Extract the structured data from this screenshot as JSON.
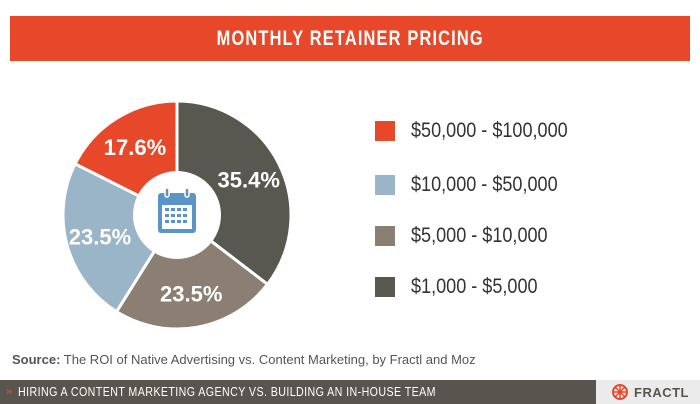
{
  "header": {
    "title": "MONTHLY RETAINER PRICING"
  },
  "chart_data": {
    "type": "pie",
    "title": "MONTHLY RETAINER PRICING",
    "center_icon": "calendar-icon",
    "slices": [
      {
        "label": "$1,000 - $5,000",
        "value": 35.4,
        "display": "35.4%",
        "color": "#595850"
      },
      {
        "label": "$5,000 - $10,000",
        "value": 23.5,
        "display": "23.5%",
        "color": "#8a7f72"
      },
      {
        "label": "$10,000 - $50,000",
        "value": 23.5,
        "display": "23.5%",
        "color": "#9ab4c8"
      },
      {
        "label": "$50,000 - $100,000",
        "value": 17.6,
        "display": "17.6%",
        "color": "#e8482a"
      }
    ],
    "legend": {
      "placement": "right",
      "entries": [
        {
          "label": "$50,000 - $100,000",
          "color": "#e8482a"
        },
        {
          "label": "$10,000 - $50,000",
          "color": "#9ab4c8"
        },
        {
          "label": "$5,000 - $10,000",
          "color": "#8a7f72"
        },
        {
          "label": "$1,000 - $5,000",
          "color": "#595850"
        }
      ]
    }
  },
  "source": {
    "label": "Source:",
    "text": "The ROI of Native Advertising vs. Content Marketing, by Fractl and Moz"
  },
  "footer": {
    "arrow": "»",
    "text": "HIRING A CONTENT MARKETING AGENCY VS. BUILDING AN IN-HOUSE TEAM",
    "brand": "FRACTL",
    "brand_icon": "fractl-logo-icon"
  },
  "colors": {
    "accent": "#e8482a",
    "footer_bar": "#58554f",
    "icon_blue": "#5b95c7"
  }
}
